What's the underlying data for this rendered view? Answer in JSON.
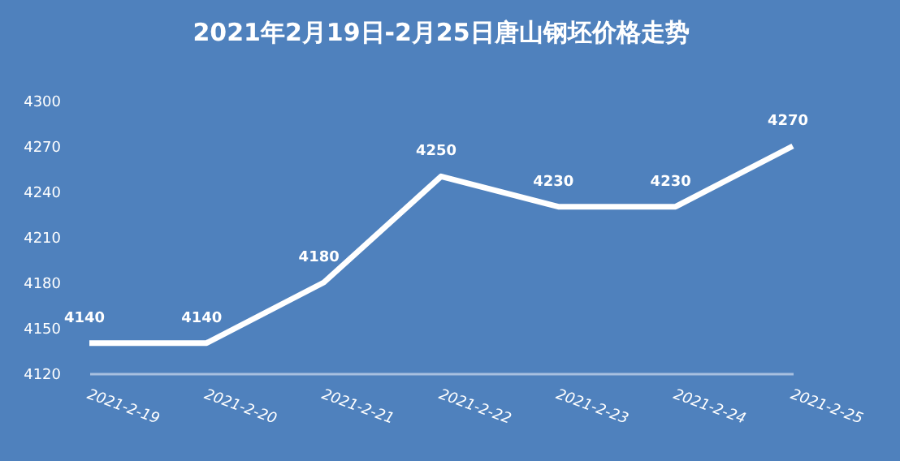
{
  "chart_data": {
    "type": "line",
    "title": "2021年2月19日-2月25日唐山钢坯价格走势",
    "categories": [
      "2021-2-19",
      "2021-2-20",
      "2021-2-21",
      "2021-2-22",
      "2021-2-23",
      "2021-2-24",
      "2021-2-25"
    ],
    "series": [
      {
        "color": "#ffffff",
        "values": [
          4140,
          4140,
          4180,
          4250,
          4230,
          4230,
          4270
        ]
      }
    ],
    "ylim": [
      4120,
      4300
    ],
    "yticks": [
      4120,
      4150,
      4180,
      4210,
      4240,
      4270,
      4300
    ],
    "data_labels": true,
    "grid": false,
    "legend": false,
    "marker": "none",
    "line_style": "solid"
  }
}
